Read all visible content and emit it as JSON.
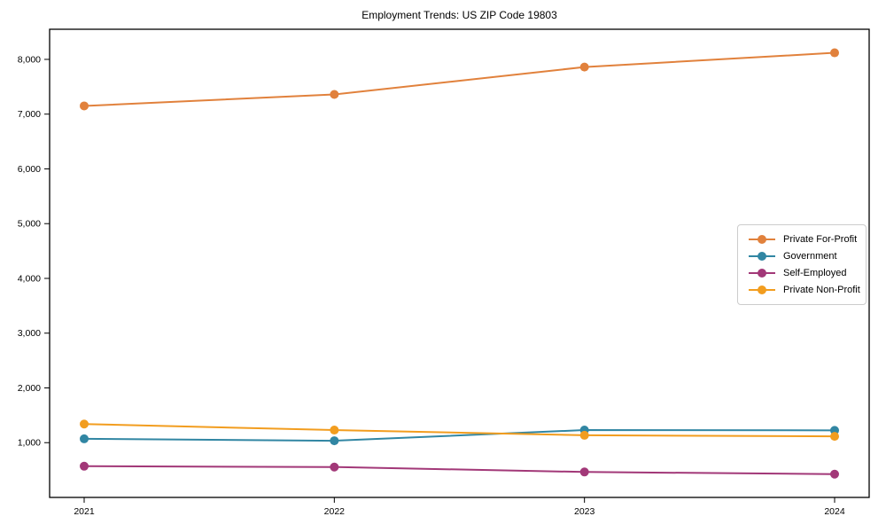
{
  "chart_data": {
    "type": "line",
    "title": "Employment Trends: US ZIP Code 19803",
    "xlabel": "",
    "ylabel": "",
    "categories": [
      "2021",
      "2022",
      "2023",
      "2024"
    ],
    "series": [
      {
        "name": "Private For-Profit",
        "color": "#E1813C",
        "values": [
          7150,
          7360,
          7860,
          8120
        ]
      },
      {
        "name": "Government",
        "color": "#3186A3",
        "values": [
          1070,
          1035,
          1230,
          1225
        ]
      },
      {
        "name": "Self-Employed",
        "color": "#A23878",
        "values": [
          570,
          555,
          465,
          425
        ]
      },
      {
        "name": "Private Non-Profit",
        "color": "#F29D1F",
        "values": [
          1340,
          1230,
          1135,
          1115
        ]
      }
    ],
    "ylim": [
      0,
      8550
    ],
    "yticks": [
      1000,
      2000,
      3000,
      4000,
      5000,
      6000,
      7000,
      8000
    ],
    "ytick_labels": [
      "1,000",
      "2,000",
      "3,000",
      "4,000",
      "5,000",
      "6,000",
      "7,000",
      "8,000"
    ],
    "grid": "off",
    "legend_position": "center-right",
    "marker": "circle",
    "axis_color": "#000000",
    "background_color": "#ffffff"
  }
}
